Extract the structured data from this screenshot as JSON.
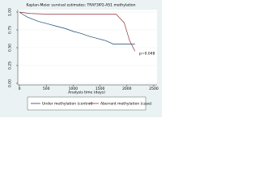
{
  "chart_data": {
    "type": "line",
    "title": "Kaplan-Meier survival estimates: TRAF3IP2-AS1 methylation",
    "x_label": "Analysis time (days)",
    "annotation": "p=0.048",
    "xlim": [
      0,
      2500
    ],
    "xticks": [
      0,
      500,
      1000,
      1500,
      2000,
      2500
    ],
    "ylim": [
      0,
      1
    ],
    "yticks": [
      {
        "value": 0,
        "label": "0.00"
      },
      {
        "value": 0.25,
        "label": "0.25"
      },
      {
        "value": 0.5,
        "label": "0.50"
      },
      {
        "value": 0.75,
        "label": "0.75"
      },
      {
        "value": 1,
        "label": "1.00"
      }
    ],
    "grid": true,
    "series": [
      {
        "name": "Under methylation (control)",
        "color": "#1a476f",
        "x": [
          0,
          60,
          150,
          250,
          350,
          450,
          550,
          700,
          850,
          1000,
          1150,
          1300,
          1450,
          1600,
          1750,
          2000,
          2150
        ],
        "values": [
          1,
          0.97,
          0.93,
          0.9,
          0.87,
          0.85,
          0.83,
          0.8,
          0.77,
          0.73,
          0.7,
          0.66,
          0.63,
          0.6,
          0.55,
          0.55,
          0.55
        ]
      },
      {
        "name": "Aberrant methylation (case)",
        "color": "#90353b",
        "x": [
          0,
          200,
          600,
          1000,
          1400,
          1800,
          1950,
          2050,
          2150
        ],
        "values": [
          1,
          0.98,
          0.97,
          0.97,
          0.97,
          0.97,
          0.85,
          0.6,
          0.45
        ]
      }
    ]
  }
}
